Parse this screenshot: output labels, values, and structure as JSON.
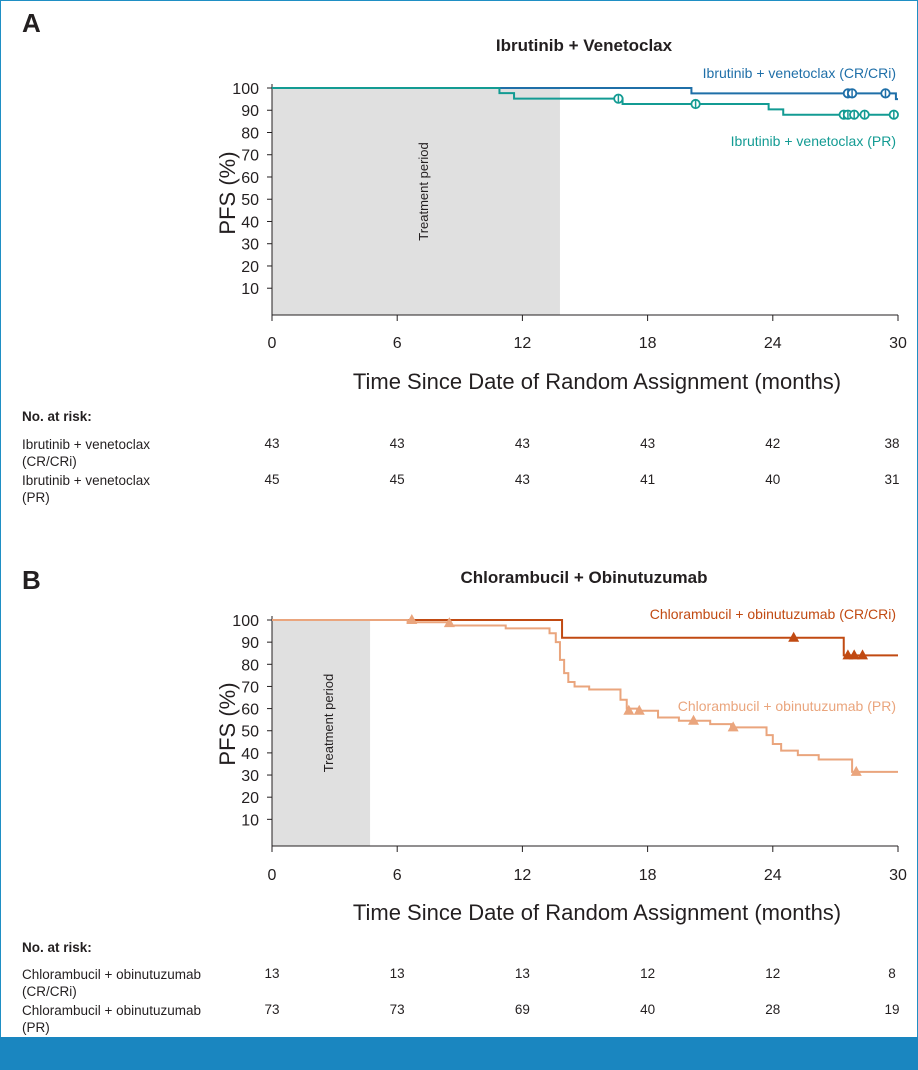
{
  "chart_data": [
    {
      "type": "line",
      "panel": "A",
      "title": "Ibrutinib + Venetoclax",
      "xlabel": "Time Since Date of Random Assignment (months)",
      "ylabel": "PFS (%)",
      "xlim": [
        0,
        30
      ],
      "ylim": [
        0,
        100
      ],
      "xticks": [
        0,
        6,
        12,
        18,
        24,
        30
      ],
      "yticks": [
        10,
        20,
        30,
        40,
        50,
        60,
        70,
        80,
        90,
        100
      ],
      "shaded_region": {
        "x": [
          0,
          13.8
        ],
        "label": "Treatment period"
      },
      "series": [
        {
          "name": "Ibrutinib + venetoclax (CR/CRi)",
          "color": "#1f6fa8",
          "steps": [
            [
              0,
              100
            ],
            [
              20.1,
              97.6
            ],
            [
              29.9,
              95.0
            ],
            [
              30,
              95.0
            ]
          ],
          "censor": [
            [
              27.6,
              97.6
            ],
            [
              27.8,
              97.6
            ],
            [
              29.4,
              97.6
            ]
          ],
          "marker": "circle-line"
        },
        {
          "name": "Ibrutinib + venetoclax (PR)",
          "color": "#139b93",
          "steps": [
            [
              0,
              100
            ],
            [
              10.9,
              97.7
            ],
            [
              11.6,
              95.2
            ],
            [
              16.8,
              92.8
            ],
            [
              23.8,
              90.4
            ],
            [
              24.5,
              88.0
            ],
            [
              30,
              88.0
            ]
          ],
          "censor": [
            [
              16.6,
              95.2
            ],
            [
              20.3,
              92.8
            ],
            [
              27.4,
              88.0
            ],
            [
              27.6,
              88.0
            ],
            [
              27.9,
              88.0
            ],
            [
              28.4,
              88.0
            ],
            [
              29.8,
              88.0
            ]
          ],
          "marker": "circle-line"
        }
      ],
      "risk_table": {
        "header": "No. at risk:",
        "times": [
          0,
          6,
          12,
          18,
          24,
          30
        ],
        "rows": [
          {
            "label_lines": [
              "Ibrutinib + venetoclax",
              "(CR/CRi)"
            ],
            "values": [
              43,
              43,
              43,
              43,
              42,
              38
            ]
          },
          {
            "label_lines": [
              "Ibrutinib + venetoclax",
              "(PR)"
            ],
            "values": [
              45,
              45,
              43,
              41,
              40,
              31
            ]
          }
        ]
      }
    },
    {
      "type": "line",
      "panel": "B",
      "title": "Chlorambucil + Obinutuzumab",
      "xlabel": "Time Since Date of Random Assignment (months)",
      "ylabel": "PFS (%)",
      "xlim": [
        0,
        30
      ],
      "ylim": [
        0,
        100
      ],
      "xticks": [
        0,
        6,
        12,
        18,
        24,
        30
      ],
      "yticks": [
        10,
        20,
        30,
        40,
        50,
        60,
        70,
        80,
        90,
        100
      ],
      "shaded_region": {
        "x": [
          0,
          4.7
        ],
        "label": "Treatment period"
      },
      "series": [
        {
          "name": "Chlorambucil + obinutuzumab (CR/CRi)",
          "color": "#c14a12",
          "steps": [
            [
              0,
              100
            ],
            [
              13.9,
              92.0
            ],
            [
              27.4,
              84.0
            ],
            [
              30,
              84.0
            ]
          ],
          "censor": [
            [
              25.0,
              92.0
            ],
            [
              27.6,
              84.0
            ],
            [
              27.9,
              84.0
            ],
            [
              28.3,
              84.0
            ]
          ],
          "marker": "triangle"
        },
        {
          "name": "Chlorambucil + obinutuzumab (PR)",
          "color": "#eaa57d",
          "steps": [
            [
              0,
              100
            ],
            [
              6.5,
              99.0
            ],
            [
              8.5,
              97.5
            ],
            [
              11.2,
              96.2
            ],
            [
              13.3,
              94.0
            ],
            [
              13.6,
              90.0
            ],
            [
              13.8,
              82.0
            ],
            [
              14.0,
              76.0
            ],
            [
              14.2,
              72.0
            ],
            [
              14.5,
              70.0
            ],
            [
              15.2,
              68.6
            ],
            [
              16.7,
              64.0
            ],
            [
              17.0,
              60.0
            ],
            [
              17.5,
              59.0
            ],
            [
              18.5,
              56.0
            ],
            [
              19.5,
              54.5
            ],
            [
              21.0,
              53.0
            ],
            [
              22.0,
              51.5
            ],
            [
              23.7,
              48.0
            ],
            [
              24.0,
              44.0
            ],
            [
              24.4,
              41.0
            ],
            [
              25.2,
              39.0
            ],
            [
              26.2,
              37.0
            ],
            [
              27.8,
              31.4
            ],
            [
              30,
              31.4
            ]
          ],
          "censor": [
            [
              6.7,
              100.0
            ],
            [
              8.5,
              98.6
            ],
            [
              17.1,
              59.0
            ],
            [
              17.6,
              59.0
            ],
            [
              20.2,
              54.5
            ],
            [
              22.1,
              51.5
            ],
            [
              28.0,
              31.4
            ]
          ],
          "marker": "triangle"
        }
      ],
      "risk_table": {
        "header": "No. at risk:",
        "times": [
          0,
          6,
          12,
          18,
          24,
          30
        ],
        "rows": [
          {
            "label_lines": [
              "Chlorambucil + obinutuzumab",
              "(CR/CRi)"
            ],
            "values": [
              13,
              13,
              13,
              12,
              12,
              8
            ]
          },
          {
            "label_lines": [
              "Chlorambucil + obinutuzumab",
              "(PR)"
            ],
            "values": [
              73,
              73,
              69,
              40,
              28,
              19
            ]
          }
        ]
      }
    }
  ],
  "labels": {
    "panel_a_letter": "A",
    "panel_b_letter": "B"
  },
  "colors": {
    "frame": "#1f8fc4",
    "footer_bar": "#1a86c0",
    "shade": "#e0e0e0"
  }
}
